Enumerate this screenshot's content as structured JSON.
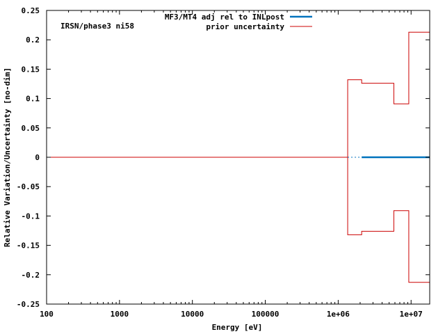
{
  "chart_data": {
    "type": "line",
    "annotation": "IRSN/phase3 ni58",
    "xlabel": "Energy [eV]",
    "ylabel": "Relative Variation/Uncertainty [no-dim]",
    "x_scale": "log",
    "xlim": [
      100,
      18000000
    ],
    "ylim": [
      -0.25,
      0.25
    ],
    "x_ticks": [
      {
        "value": 100,
        "label": "100"
      },
      {
        "value": 1000,
        "label": "1000"
      },
      {
        "value": 10000,
        "label": "10000"
      },
      {
        "value": 100000,
        "label": "100000"
      },
      {
        "value": 1000000,
        "label": "1e+06"
      },
      {
        "value": 10000000,
        "label": "1e+07"
      }
    ],
    "y_ticks": [
      {
        "value": 0.25,
        "label": "0.25"
      },
      {
        "value": 0.2,
        "label": "0.2"
      },
      {
        "value": 0.15,
        "label": "0.15"
      },
      {
        "value": 0.1,
        "label": "0.1"
      },
      {
        "value": 0.05,
        "label": "0.05"
      },
      {
        "value": 0,
        "label": "0"
      },
      {
        "value": -0.05,
        "label": "-0.05"
      },
      {
        "value": -0.1,
        "label": "-0.1"
      },
      {
        "value": -0.15,
        "label": "-0.15"
      },
      {
        "value": -0.2,
        "label": "-0.2"
      },
      {
        "value": -0.25,
        "label": "-0.25"
      }
    ],
    "legend_position": "top-right",
    "series": [
      {
        "name": "MF3/MT4 adj rel to INLpost",
        "color": "#0072bd",
        "style": "step",
        "points": [
          {
            "x": 100,
            "y": 0
          },
          {
            "x": 18000000,
            "y": 0
          }
        ]
      },
      {
        "name": "prior uncertainty",
        "color": "#cc0000",
        "style": "step-band",
        "points": [
          {
            "x": 100,
            "y": 0
          },
          {
            "x": 1350000,
            "y": 0
          },
          {
            "x": 1350000,
            "y": 0.132
          },
          {
            "x": 2100000,
            "y": 0.132
          },
          {
            "x": 2100000,
            "y": 0.126
          },
          {
            "x": 5800000,
            "y": 0.126
          },
          {
            "x": 5800000,
            "y": 0.091
          },
          {
            "x": 9300000,
            "y": 0.091
          },
          {
            "x": 9300000,
            "y": 0.213
          },
          {
            "x": 18000000,
            "y": 0.213
          }
        ]
      }
    ]
  }
}
